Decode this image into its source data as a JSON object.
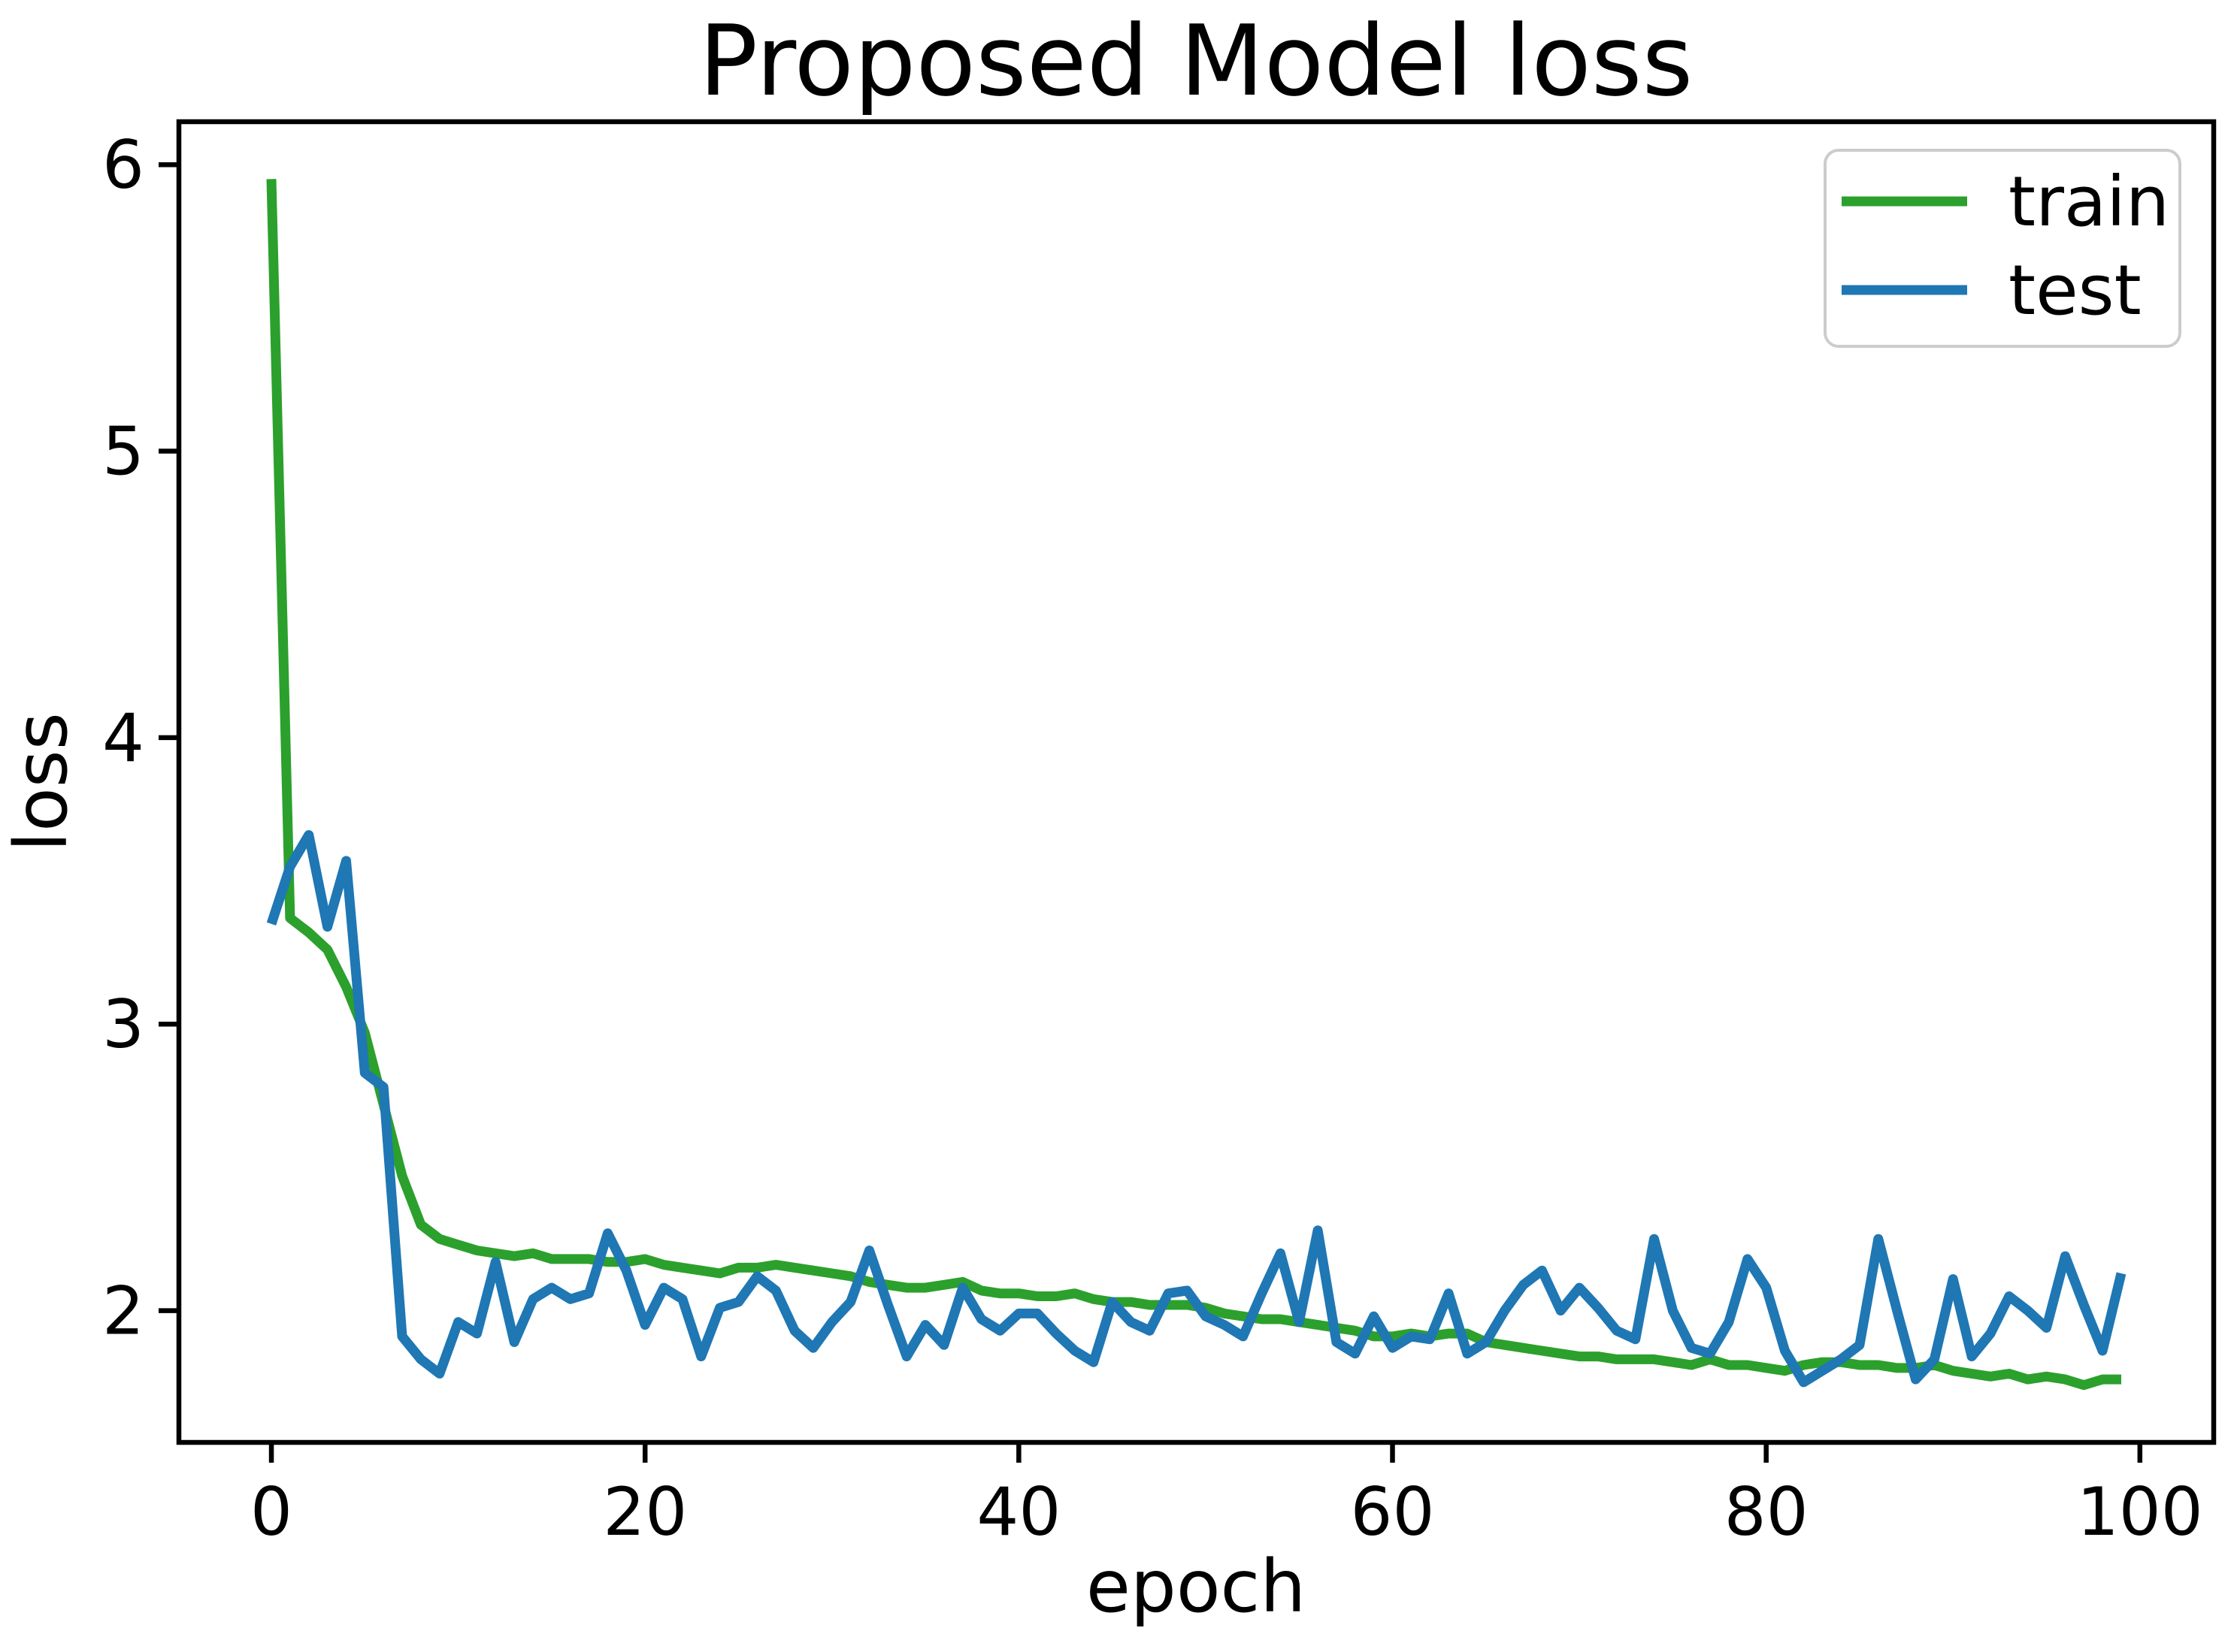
{
  "title": "Proposed Model loss",
  "axes": {
    "xlabel": "epoch",
    "ylabel": "loss"
  },
  "legend": {
    "position": "upper right",
    "items": [
      {
        "label": "train",
        "color": "#2ca02c"
      },
      {
        "label": "test",
        "color": "#1f77b4"
      }
    ]
  },
  "colors": {
    "train": "#2ca02c",
    "test": "#1f77b4",
    "spine": "#000000",
    "legend_border": "#cccccc",
    "background": "#ffffff"
  },
  "chart_data": {
    "type": "line",
    "title": "Proposed Model loss",
    "xlabel": "epoch",
    "ylabel": "loss",
    "grid": false,
    "legend_position": "upper right",
    "xlim": [
      -4.95,
      103.95
    ],
    "ylim": [
      1.54,
      6.15
    ],
    "xticks": [
      0,
      20,
      40,
      60,
      80,
      100
    ],
    "yticks": [
      2,
      3,
      4,
      5,
      6
    ],
    "x": [
      0,
      1,
      2,
      3,
      4,
      5,
      6,
      7,
      8,
      9,
      10,
      11,
      12,
      13,
      14,
      15,
      16,
      17,
      18,
      19,
      20,
      21,
      22,
      23,
      24,
      25,
      26,
      27,
      28,
      29,
      30,
      31,
      32,
      33,
      34,
      35,
      36,
      37,
      38,
      39,
      40,
      41,
      42,
      43,
      44,
      45,
      46,
      47,
      48,
      49,
      50,
      51,
      52,
      53,
      54,
      55,
      56,
      57,
      58,
      59,
      60,
      61,
      62,
      63,
      64,
      65,
      66,
      67,
      68,
      69,
      70,
      71,
      72,
      73,
      74,
      75,
      76,
      77,
      78,
      79,
      80,
      81,
      82,
      83,
      84,
      85,
      86,
      87,
      88,
      89,
      90,
      91,
      92,
      93,
      94,
      95,
      96,
      97,
      98,
      99
    ],
    "series": [
      {
        "name": "train",
        "color": "#2ca02c",
        "values": [
          5.95,
          3.37,
          3.32,
          3.26,
          3.13,
          2.97,
          2.72,
          2.47,
          2.3,
          2.25,
          2.23,
          2.21,
          2.2,
          2.19,
          2.2,
          2.18,
          2.18,
          2.18,
          2.17,
          2.17,
          2.18,
          2.16,
          2.15,
          2.14,
          2.13,
          2.15,
          2.15,
          2.16,
          2.15,
          2.14,
          2.13,
          2.12,
          2.1,
          2.09,
          2.08,
          2.08,
          2.09,
          2.1,
          2.07,
          2.06,
          2.06,
          2.05,
          2.05,
          2.06,
          2.04,
          2.03,
          2.03,
          2.02,
          2.02,
          2.02,
          2.01,
          1.99,
          1.98,
          1.97,
          1.97,
          1.96,
          1.95,
          1.94,
          1.93,
          1.91,
          1.91,
          1.92,
          1.91,
          1.92,
          1.92,
          1.89,
          1.88,
          1.87,
          1.86,
          1.85,
          1.84,
          1.84,
          1.83,
          1.83,
          1.83,
          1.82,
          1.81,
          1.83,
          1.81,
          1.81,
          1.8,
          1.79,
          1.81,
          1.82,
          1.82,
          1.81,
          1.81,
          1.8,
          1.8,
          1.81,
          1.79,
          1.78,
          1.77,
          1.78,
          1.76,
          1.77,
          1.76,
          1.74,
          1.76,
          1.76
        ]
      },
      {
        "name": "test",
        "color": "#1f77b4",
        "values": [
          3.35,
          3.55,
          3.66,
          3.34,
          3.57,
          2.83,
          2.78,
          1.91,
          1.83,
          1.78,
          1.96,
          1.92,
          2.17,
          1.89,
          2.04,
          2.08,
          2.04,
          2.06,
          2.27,
          2.14,
          1.95,
          2.08,
          2.04,
          1.84,
          2.01,
          2.03,
          2.12,
          2.07,
          1.93,
          1.87,
          1.96,
          2.03,
          2.21,
          2.02,
          1.84,
          1.95,
          1.88,
          2.08,
          1.97,
          1.93,
          1.99,
          1.99,
          1.92,
          1.86,
          1.82,
          2.03,
          1.96,
          1.93,
          2.06,
          2.07,
          1.98,
          1.95,
          1.91,
          2.06,
          2.2,
          1.96,
          2.28,
          1.89,
          1.85,
          1.98,
          1.87,
          1.91,
          1.9,
          2.06,
          1.85,
          1.89,
          2.0,
          2.09,
          2.14,
          2.0,
          2.08,
          2.01,
          1.93,
          1.9,
          2.25,
          2.0,
          1.87,
          1.85,
          1.96,
          2.18,
          2.08,
          1.86,
          1.75,
          1.79,
          1.83,
          1.88,
          2.25,
          2.0,
          1.76,
          1.83,
          2.11,
          1.84,
          1.92,
          2.05,
          2.0,
          1.94,
          2.19,
          2.02,
          1.86,
          2.13
        ]
      }
    ]
  }
}
